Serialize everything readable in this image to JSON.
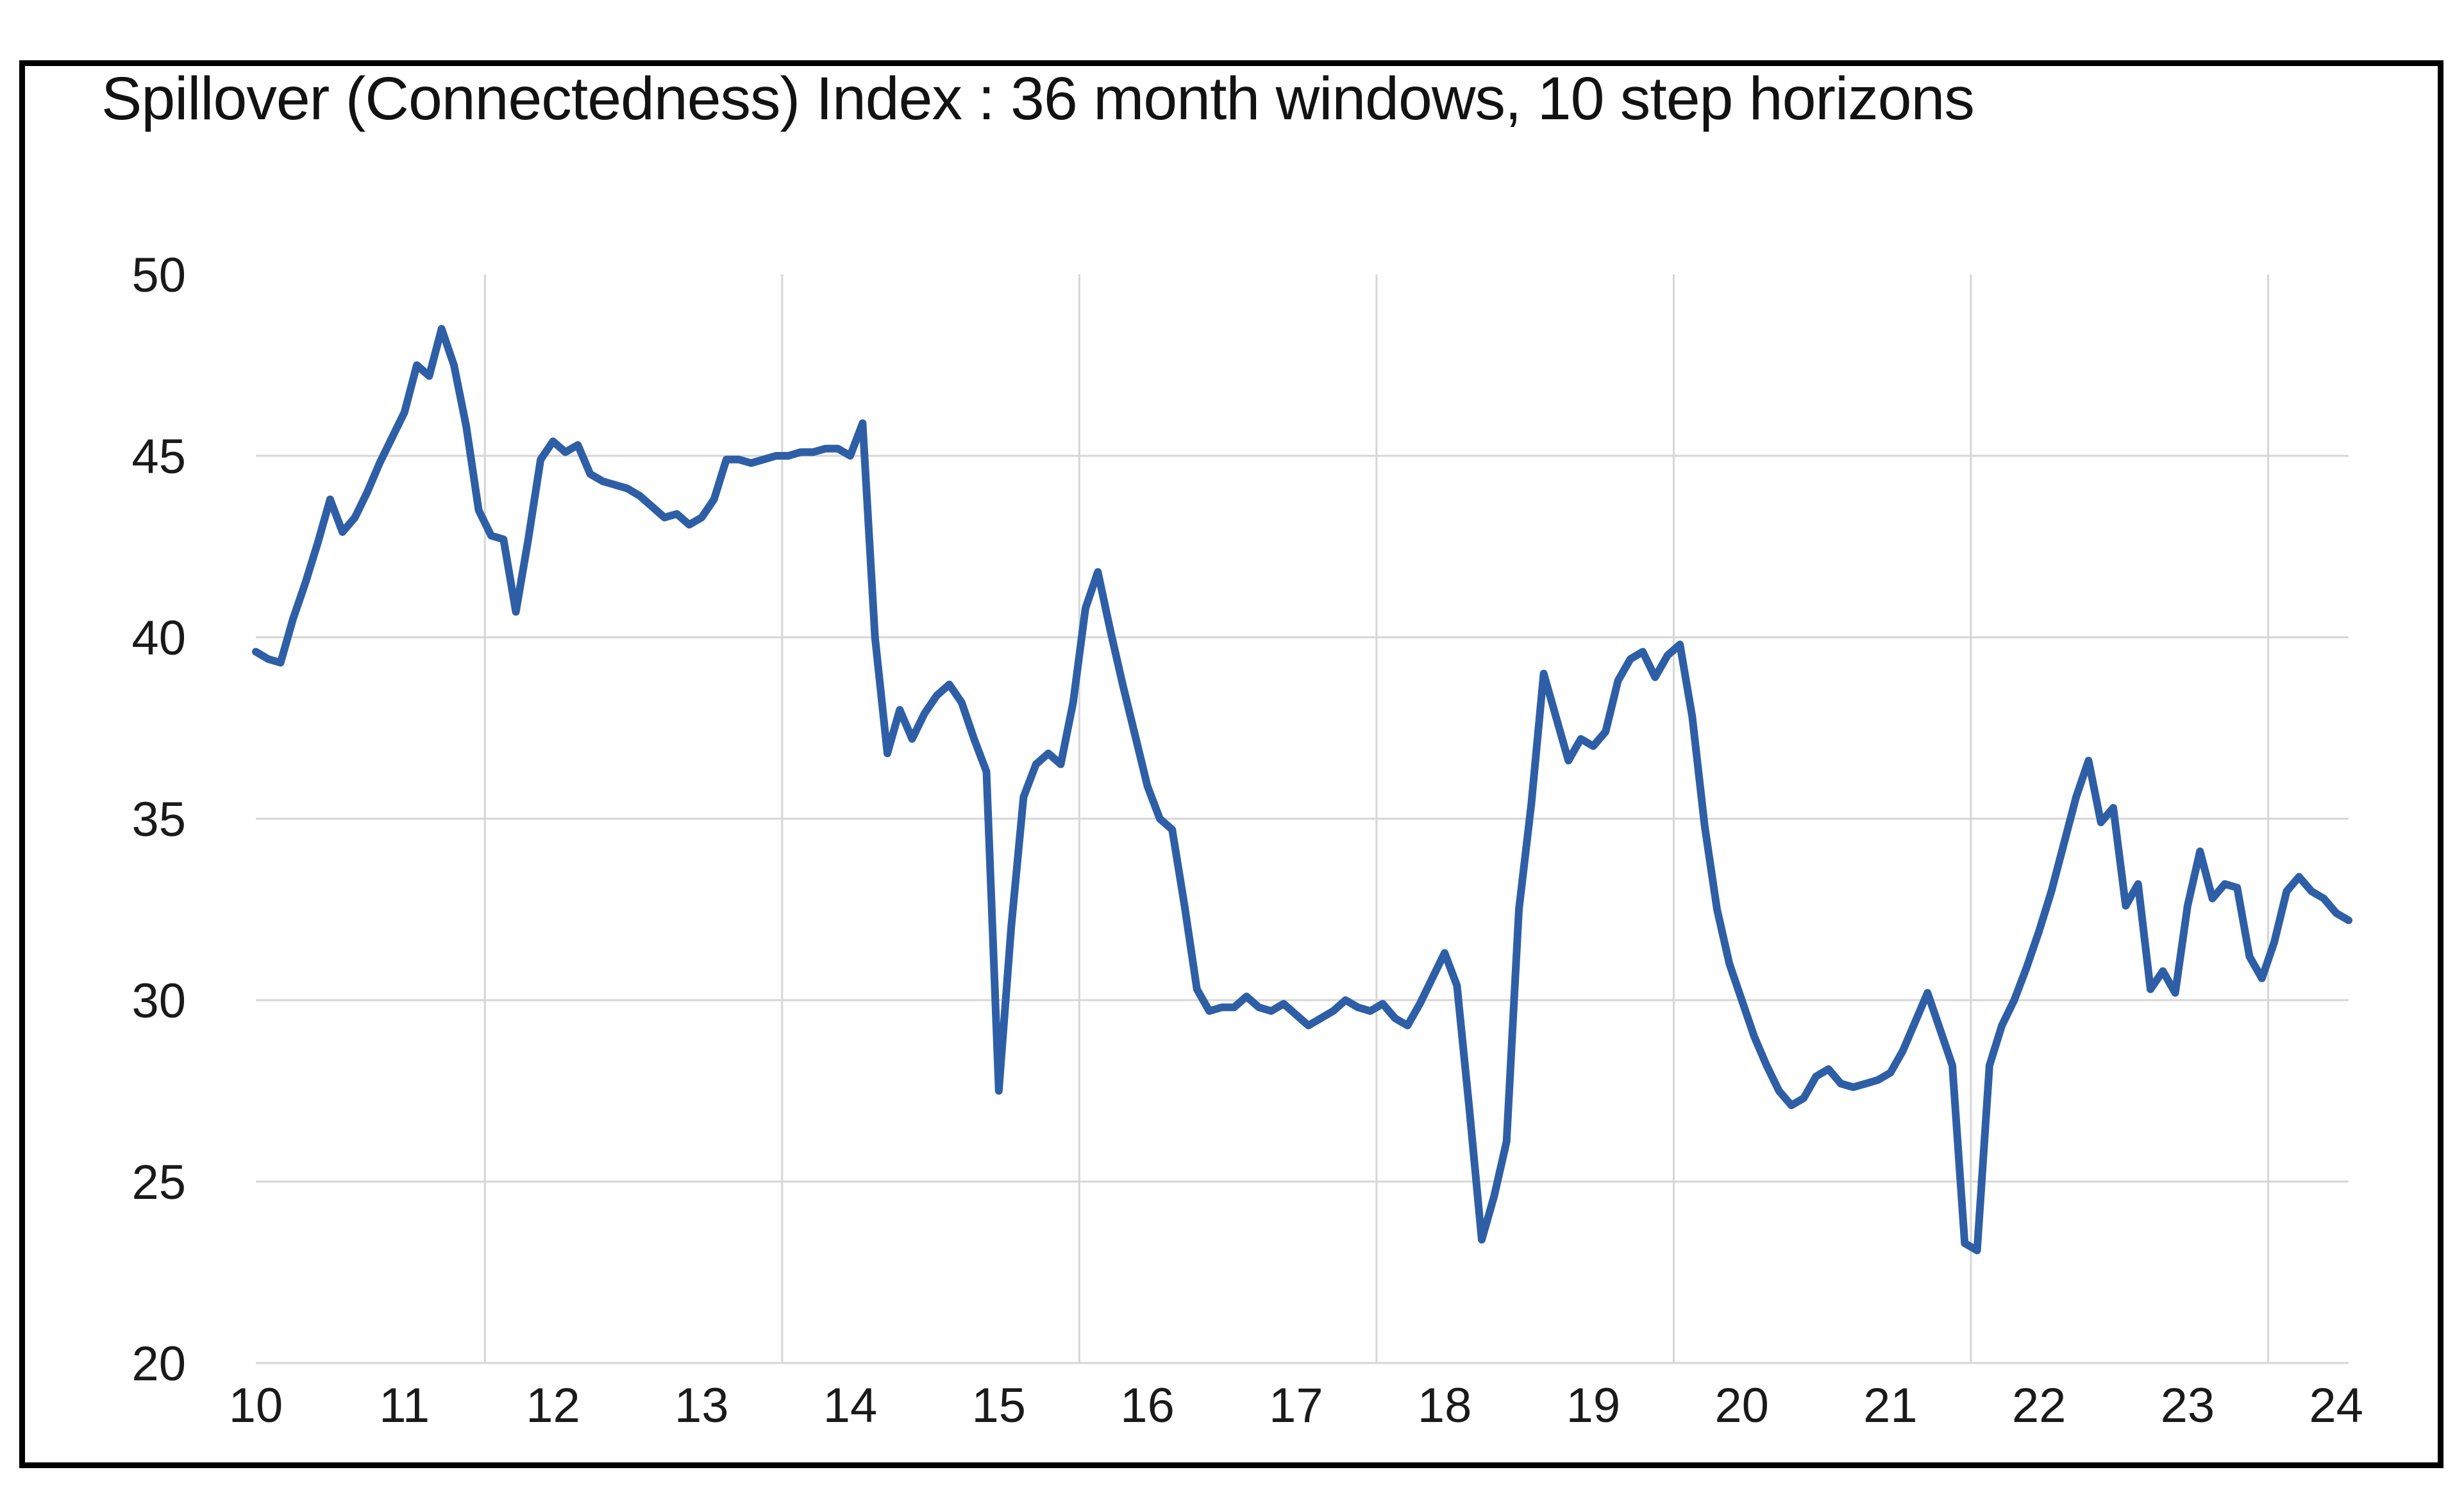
{
  "chart": {
    "title": "Spillover (Connectedness) Index : 36 month windows, 10 step horizons"
  },
  "chart_data": {
    "type": "line",
    "title": "Spillover (Connectedness) Index : 36 month windows, 10 step horizons",
    "xlabel": "",
    "ylabel": "",
    "ylim": [
      20,
      50
    ],
    "y_tick_labels": [
      "50",
      "45",
      "40",
      "35",
      "30",
      "25",
      "20"
    ],
    "y_gridline_values": [
      45,
      40,
      35,
      30,
      25,
      20
    ],
    "x_tick_labels": [
      "10",
      "11",
      "12",
      "13",
      "14",
      "15",
      "16",
      "17",
      "18",
      "19",
      "20",
      "21",
      "22",
      "23",
      "24"
    ],
    "x_gridline_month_positions": [
      18.5,
      42.5,
      66.5,
      90.5,
      114.5,
      138.5,
      162.5
    ],
    "grid": "on",
    "legend_position": "none",
    "frequency": "monthly",
    "start": "2010-01",
    "end": "2024-02",
    "series": [
      {
        "name": "Spillover (Connectedness) Index",
        "color": "#2E5FA6",
        "values": [
          39.6,
          39.4,
          39.3,
          40.5,
          41.5,
          42.6,
          43.8,
          42.9,
          43.3,
          44.0,
          44.8,
          45.5,
          46.2,
          47.5,
          47.2,
          48.5,
          47.5,
          45.8,
          43.5,
          42.8,
          42.7,
          40.7,
          42.7,
          44.9,
          45.4,
          45.1,
          45.3,
          44.5,
          44.3,
          44.2,
          44.1,
          43.9,
          43.6,
          43.3,
          43.4,
          43.1,
          43.3,
          43.8,
          44.9,
          44.9,
          44.8,
          44.9,
          45.0,
          45.0,
          45.1,
          45.1,
          45.2,
          45.2,
          45.0,
          45.9,
          40.0,
          36.8,
          38.0,
          37.2,
          37.9,
          38.4,
          38.7,
          38.2,
          37.2,
          36.3,
          27.5,
          32.0,
          35.6,
          36.5,
          36.8,
          36.5,
          38.2,
          40.8,
          41.8,
          40.2,
          38.7,
          37.3,
          35.9,
          35.0,
          34.7,
          32.6,
          30.3,
          29.7,
          29.8,
          29.8,
          30.1,
          29.8,
          29.7,
          29.9,
          29.6,
          29.3,
          29.5,
          29.7,
          30.0,
          29.8,
          29.7,
          29.9,
          29.5,
          29.3,
          29.9,
          30.6,
          31.3,
          30.4,
          27.0,
          23.4,
          24.6,
          26.1,
          32.5,
          35.4,
          39.0,
          37.8,
          36.6,
          37.2,
          37.0,
          37.4,
          38.8,
          39.4,
          39.6,
          38.9,
          39.5,
          39.8,
          37.8,
          34.8,
          32.5,
          31.0,
          30.0,
          29.0,
          28.2,
          27.5,
          27.1,
          27.3,
          27.9,
          28.1,
          27.7,
          27.6,
          27.7,
          27.8,
          28.0,
          28.6,
          29.4,
          30.2,
          29.2,
          28.2,
          23.3,
          23.1,
          28.2,
          29.3,
          30.0,
          30.9,
          31.9,
          33.0,
          34.3,
          35.6,
          36.6,
          34.9,
          35.3,
          32.6,
          33.2,
          30.3,
          30.8,
          30.2,
          32.6,
          34.1,
          32.8,
          33.2,
          33.1,
          31.2,
          30.6,
          31.6,
          33.0,
          33.4,
          33.0,
          32.8,
          32.4,
          32.2
        ]
      }
    ]
  }
}
